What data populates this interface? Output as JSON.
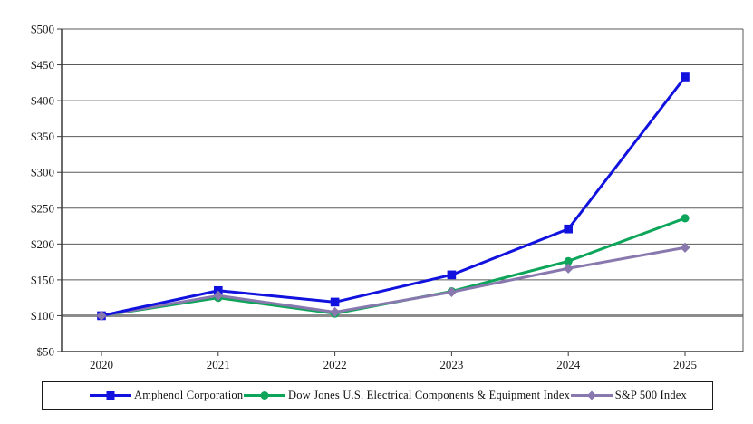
{
  "chart_data": {
    "type": "line",
    "title": "",
    "x_labels": [
      "2020",
      "2021",
      "2022",
      "2023",
      "2024",
      "2025"
    ],
    "series": [
      {
        "name": "Amphenol Corporation",
        "marker": "square",
        "color": "#1212df",
        "values": [
          100,
          135,
          119,
          157,
          221,
          433
        ]
      },
      {
        "name": "Dow Jones U.S. Electrical Components & Equipment Index",
        "marker": "circle",
        "color": "#0ca559",
        "values": [
          100,
          125,
          103,
          134,
          176,
          236
        ]
      },
      {
        "name": "S&P 500 Index",
        "marker": "diamond",
        "color": "#8878ae",
        "values": [
          100,
          128,
          105,
          133,
          166,
          195
        ]
      }
    ],
    "ylim": [
      50,
      500
    ],
    "ytick_step": 50,
    "ytick_labels": [
      "$50",
      "$100",
      "$150",
      "$200",
      "$250",
      "$300",
      "$350",
      "$400",
      "$450",
      "$500"
    ],
    "baseline_value": 100,
    "grid": true,
    "legend_position": "bottom"
  },
  "colors": {
    "gridline": "#5a5a5a",
    "axis": "#3a3a3a",
    "baseline": "#8c8c8c",
    "background": "#ffffff",
    "text": "#1a1a1a"
  }
}
